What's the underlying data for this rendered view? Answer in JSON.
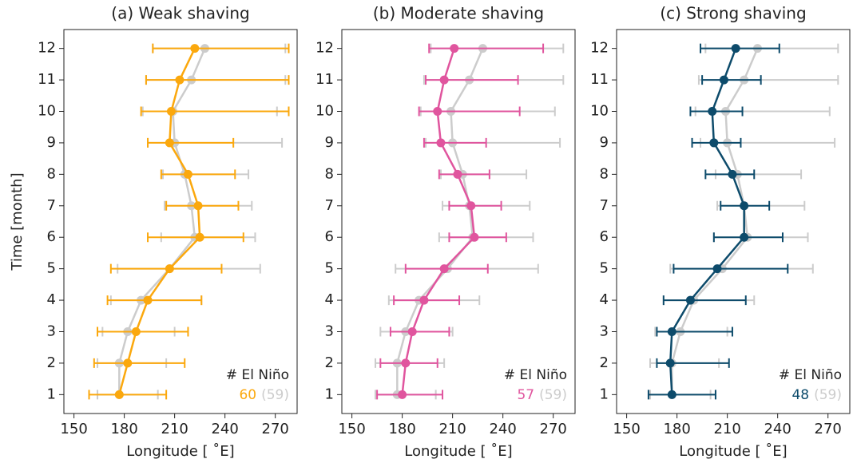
{
  "chart_data": [
    {
      "type": "errorbar",
      "title": "(a) Weak shaving",
      "xlabel": "Longitude [ ˚E]",
      "ylabel": "Time [month]",
      "xlim": [
        144,
        283
      ],
      "xticks": [
        150,
        180,
        210,
        240,
        270
      ],
      "ylim": [
        0.4,
        12.6
      ],
      "yticks": [
        1,
        2,
        3,
        4,
        5,
        6,
        7,
        8,
        9,
        10,
        11,
        12
      ],
      "annotation": "# El Niño",
      "count": 60,
      "total": "(59)",
      "series": [
        {
          "color": "#cccccc",
          "y": [
            1,
            2,
            3,
            4,
            5,
            6,
            7,
            8,
            9,
            10,
            11,
            12
          ],
          "x": [
            177,
            177,
            182,
            190,
            207,
            222,
            220,
            216,
            210,
            209,
            220,
            228
          ],
          "xmin": [
            164,
            164,
            167,
            172,
            176,
            202,
            204,
            203,
            194,
            191,
            193,
            197
          ],
          "xmax": [
            200,
            205,
            210,
            226,
            261,
            258,
            256,
            254,
            274,
            271,
            276,
            276
          ]
        },
        {
          "color": "#fba80d",
          "y": [
            1,
            2,
            3,
            4,
            5,
            6,
            7,
            8,
            9,
            10,
            11,
            12
          ],
          "x": [
            177,
            182,
            187,
            194,
            207,
            225,
            224,
            218,
            207,
            208,
            213,
            222
          ],
          "xmin": [
            159,
            162,
            164,
            170,
            172,
            194,
            205,
            202,
            194,
            190,
            193,
            197
          ],
          "xmax": [
            205,
            216,
            218,
            226,
            238,
            251,
            248,
            246,
            245,
            278,
            278,
            278
          ]
        }
      ]
    },
    {
      "type": "errorbar",
      "title": "(b) Moderate shaving",
      "xlabel": "Longitude [ ˚E]",
      "xlim": [
        144,
        283
      ],
      "xticks": [
        150,
        180,
        210,
        240,
        270
      ],
      "ylim": [
        0.4,
        12.6
      ],
      "yticks": [
        1,
        2,
        3,
        4,
        5,
        6,
        7,
        8,
        9,
        10,
        11,
        12
      ],
      "annotation": "# El Niño",
      "count": 57,
      "total": "(59)",
      "series": [
        {
          "color": "#cccccc",
          "y": [
            1,
            2,
            3,
            4,
            5,
            6,
            7,
            8,
            9,
            10,
            11,
            12
          ],
          "x": [
            177,
            177,
            182,
            190,
            207,
            222,
            220,
            216,
            210,
            209,
            220,
            228
          ],
          "xmin": [
            164,
            164,
            167,
            172,
            176,
            202,
            204,
            203,
            194,
            191,
            193,
            197
          ],
          "xmax": [
            200,
            205,
            210,
            226,
            261,
            258,
            256,
            254,
            274,
            271,
            276,
            276
          ]
        },
        {
          "color": "#e0559e",
          "y": [
            1,
            2,
            3,
            4,
            5,
            6,
            7,
            8,
            9,
            10,
            11,
            12
          ],
          "x": [
            180,
            182,
            186,
            193,
            205,
            223,
            221,
            213,
            203,
            201,
            205,
            211
          ],
          "xmin": [
            165,
            167,
            173,
            175,
            182,
            208,
            208,
            202,
            193,
            190,
            194,
            196
          ],
          "xmax": [
            204,
            201,
            208,
            214,
            231,
            242,
            239,
            232,
            230,
            250,
            249,
            264
          ]
        }
      ]
    },
    {
      "type": "errorbar",
      "title": "(c) Strong shaving",
      "xlabel": "Longitude [ ˚E]",
      "xlim": [
        144,
        283
      ],
      "xticks": [
        150,
        180,
        210,
        240,
        270
      ],
      "ylim": [
        0.4,
        12.6
      ],
      "yticks": [
        1,
        2,
        3,
        4,
        5,
        6,
        7,
        8,
        9,
        10,
        11,
        12
      ],
      "annotation": "# El Niño",
      "count": 48,
      "total": "(59)",
      "series": [
        {
          "color": "#cccccc",
          "y": [
            1,
            2,
            3,
            4,
            5,
            6,
            7,
            8,
            9,
            10,
            11,
            12
          ],
          "x": [
            177,
            177,
            182,
            190,
            207,
            222,
            220,
            216,
            210,
            209,
            220,
            228
          ],
          "xmin": [
            164,
            164,
            167,
            172,
            176,
            202,
            204,
            203,
            194,
            191,
            193,
            197
          ],
          "xmax": [
            200,
            205,
            210,
            226,
            261,
            258,
            256,
            254,
            274,
            271,
            276,
            276
          ]
        },
        {
          "color": "#0d4b6b",
          "y": [
            1,
            2,
            3,
            4,
            5,
            6,
            7,
            8,
            9,
            10,
            11,
            12
          ],
          "x": [
            177,
            176,
            177,
            188,
            204,
            220,
            220,
            213,
            202,
            201,
            208,
            215
          ],
          "xmin": [
            163,
            168,
            168,
            172,
            178,
            202,
            206,
            197,
            189,
            188,
            195,
            194
          ],
          "xmax": [
            203,
            211,
            213,
            221,
            246,
            243,
            235,
            226,
            218,
            219,
            230,
            241
          ]
        }
      ]
    }
  ]
}
